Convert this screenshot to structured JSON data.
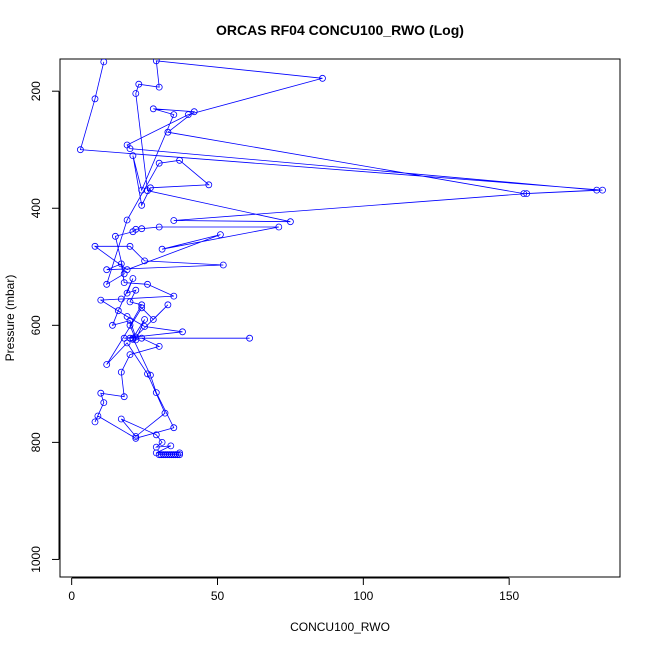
{
  "chart_data": {
    "type": "line",
    "title": "ORCAS RF04 CONCU100_RWO (Log)",
    "xlabel": "CONCU100_RWO",
    "ylabel": "Pressure (mbar)",
    "xlim": [
      -4,
      188
    ],
    "ylim": [
      1030,
      145
    ],
    "y_reversed": true,
    "x_ticks": [
      0,
      50,
      100,
      150
    ],
    "y_ticks": [
      200,
      400,
      600,
      800,
      1000
    ],
    "grid": false,
    "legend": "none",
    "series": [
      {
        "color": "#0000ff",
        "points": [
          {
            "x": 11,
            "y": 150
          },
          {
            "x": 8,
            "y": 213
          },
          {
            "x": 3,
            "y": 300
          },
          {
            "x": 182,
            "y": 369
          },
          {
            "x": 156,
            "y": 375
          },
          {
            "x": 35,
            "y": 421
          },
          {
            "x": 75,
            "y": 423
          },
          {
            "x": 26,
            "y": 370
          },
          {
            "x": 22,
            "y": 204
          },
          {
            "x": 23,
            "y": 188
          },
          {
            "x": 30,
            "y": 193
          },
          {
            "x": 29,
            "y": 148
          },
          {
            "x": 86,
            "y": 178
          },
          {
            "x": 40,
            "y": 240
          },
          {
            "x": 19,
            "y": 292
          },
          {
            "x": 20,
            "y": 298
          },
          {
            "x": 180,
            "y": 369
          },
          {
            "x": 155,
            "y": 375
          },
          {
            "x": 33,
            "y": 270
          },
          {
            "x": 42,
            "y": 235
          },
          {
            "x": 28,
            "y": 230
          },
          {
            "x": 35,
            "y": 240
          },
          {
            "x": 24,
            "y": 369
          },
          {
            "x": 21,
            "y": 310
          },
          {
            "x": 24,
            "y": 395
          },
          {
            "x": 27,
            "y": 365
          },
          {
            "x": 47,
            "y": 360
          },
          {
            "x": 37,
            "y": 318
          },
          {
            "x": 30,
            "y": 323
          },
          {
            "x": 19,
            "y": 420
          },
          {
            "x": 12,
            "y": 530
          },
          {
            "x": 18,
            "y": 512
          },
          {
            "x": 15,
            "y": 448
          },
          {
            "x": 21,
            "y": 440
          },
          {
            "x": 22,
            "y": 436
          },
          {
            "x": 24,
            "y": 435
          },
          {
            "x": 30,
            "y": 432
          },
          {
            "x": 71,
            "y": 432
          },
          {
            "x": 31,
            "y": 470
          },
          {
            "x": 51,
            "y": 445
          },
          {
            "x": 19,
            "y": 505
          },
          {
            "x": 8,
            "y": 465
          },
          {
            "x": 20,
            "y": 465
          },
          {
            "x": 25,
            "y": 490
          },
          {
            "x": 52,
            "y": 497
          },
          {
            "x": 12,
            "y": 505
          },
          {
            "x": 17,
            "y": 495
          },
          {
            "x": 18,
            "y": 527
          },
          {
            "x": 26,
            "y": 530
          },
          {
            "x": 35,
            "y": 550
          },
          {
            "x": 17,
            "y": 555
          },
          {
            "x": 10,
            "y": 557
          },
          {
            "x": 19,
            "y": 585
          },
          {
            "x": 25,
            "y": 602
          },
          {
            "x": 38,
            "y": 611
          },
          {
            "x": 18,
            "y": 622
          },
          {
            "x": 20,
            "y": 622
          },
          {
            "x": 61,
            "y": 622
          },
          {
            "x": 24,
            "y": 622
          },
          {
            "x": 30,
            "y": 636
          },
          {
            "x": 20,
            "y": 650
          },
          {
            "x": 17,
            "y": 680
          },
          {
            "x": 18,
            "y": 722
          },
          {
            "x": 10,
            "y": 716
          },
          {
            "x": 11,
            "y": 732
          },
          {
            "x": 8,
            "y": 765
          },
          {
            "x": 9,
            "y": 755
          },
          {
            "x": 22,
            "y": 793
          },
          {
            "x": 35,
            "y": 775
          },
          {
            "x": 29,
            "y": 715
          },
          {
            "x": 27,
            "y": 685
          },
          {
            "x": 21,
            "y": 622
          },
          {
            "x": 25,
            "y": 590
          },
          {
            "x": 22,
            "y": 625
          },
          {
            "x": 20,
            "y": 600
          },
          {
            "x": 24,
            "y": 565
          },
          {
            "x": 20,
            "y": 560
          },
          {
            "x": 22,
            "y": 540
          },
          {
            "x": 19,
            "y": 545
          },
          {
            "x": 21,
            "y": 520
          },
          {
            "x": 16,
            "y": 575
          },
          {
            "x": 14,
            "y": 600
          },
          {
            "x": 20,
            "y": 592
          },
          {
            "x": 22,
            "y": 620
          },
          {
            "x": 21,
            "y": 624
          },
          {
            "x": 33,
            "y": 565
          },
          {
            "x": 28,
            "y": 590
          },
          {
            "x": 24,
            "y": 570
          },
          {
            "x": 12,
            "y": 667
          },
          {
            "x": 19,
            "y": 630
          },
          {
            "x": 26,
            "y": 683
          },
          {
            "x": 32,
            "y": 750
          },
          {
            "x": 22,
            "y": 790
          },
          {
            "x": 17,
            "y": 760
          },
          {
            "x": 29,
            "y": 787
          },
          {
            "x": 31,
            "y": 800
          },
          {
            "x": 29,
            "y": 808
          },
          {
            "x": 34,
            "y": 806
          },
          {
            "x": 29,
            "y": 818
          },
          {
            "x": 37,
            "y": 818
          }
        ]
      }
    ],
    "dense_cluster": {
      "y": 821,
      "x": [
        30,
        30.7,
        31.4,
        32.1,
        32.8,
        33.5,
        34.2,
        34.9,
        35.6,
        36.3,
        37
      ]
    }
  }
}
